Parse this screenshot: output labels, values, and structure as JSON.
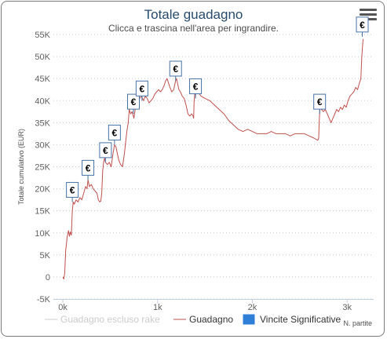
{
  "title": "Totale guadagno",
  "subtitle": "Clicca e trascina nell'area per ingrandire.",
  "menu_icon": "hamburger-menu-icon",
  "chart_data": {
    "type": "line",
    "title": "Totale guadagno",
    "subtitle": "Clicca e trascina nell'area per ingrandire.",
    "ylabel": "Totale cumulativo (EUR)",
    "xlabel": "N. partite",
    "xlim": [
      -100,
      3280
    ],
    "ylim": [
      -5000,
      55000
    ],
    "x_ticks": [
      "0k",
      "1k",
      "2k",
      "3k"
    ],
    "x_tick_values": [
      0,
      1000,
      2000,
      3000
    ],
    "y_ticks": [
      "-5K",
      "0",
      "5K",
      "10K",
      "15K",
      "20K",
      "25K",
      "30K",
      "35K",
      "40K",
      "45K",
      "50K",
      "55K"
    ],
    "y_tick_values": [
      -5000,
      0,
      5000,
      10000,
      15000,
      20000,
      25000,
      30000,
      35000,
      40000,
      45000,
      50000,
      55000
    ],
    "grid": "horizontal-dotted",
    "legend_position": "bottom",
    "series": [
      {
        "name": "Guadagno escluso rake",
        "color": "#cccccc",
        "visible": false,
        "points": []
      },
      {
        "name": "Guadagno",
        "color": "#c0504d",
        "points": [
          [
            0,
            0
          ],
          [
            10,
            -500
          ],
          [
            20,
            1000
          ],
          [
            30,
            6000
          ],
          [
            45,
            9000
          ],
          [
            60,
            10500
          ],
          [
            70,
            9200
          ],
          [
            80,
            10200
          ],
          [
            90,
            9500
          ],
          [
            100,
            15000
          ],
          [
            110,
            17000
          ],
          [
            120,
            16500
          ],
          [
            140,
            17500
          ],
          [
            160,
            17000
          ],
          [
            180,
            18000
          ],
          [
            200,
            17500
          ],
          [
            220,
            19000
          ],
          [
            240,
            20500
          ],
          [
            255,
            20000
          ],
          [
            265,
            22000
          ],
          [
            280,
            20500
          ],
          [
            300,
            21000
          ],
          [
            320,
            20000
          ],
          [
            340,
            19500
          ],
          [
            360,
            19000
          ],
          [
            375,
            17500
          ],
          [
            390,
            17000
          ],
          [
            400,
            17200
          ],
          [
            410,
            19000
          ],
          [
            420,
            24000
          ],
          [
            430,
            26000
          ],
          [
            440,
            27000
          ],
          [
            450,
            26000
          ],
          [
            470,
            25500
          ],
          [
            490,
            26000
          ],
          [
            510,
            25000
          ],
          [
            520,
            26500
          ],
          [
            530,
            28000
          ],
          [
            545,
            30000
          ],
          [
            560,
            29500
          ],
          [
            575,
            28000
          ],
          [
            590,
            26500
          ],
          [
            610,
            25500
          ],
          [
            630,
            25000
          ],
          [
            650,
            28000
          ],
          [
            665,
            31000
          ],
          [
            675,
            33000
          ],
          [
            690,
            35000
          ],
          [
            700,
            38000
          ],
          [
            715,
            37000
          ],
          [
            730,
            37500
          ],
          [
            750,
            36000
          ],
          [
            770,
            39000
          ],
          [
            790,
            40000
          ],
          [
            810,
            40500
          ],
          [
            830,
            41000
          ],
          [
            850,
            40000
          ],
          [
            870,
            41000
          ],
          [
            890,
            40500
          ],
          [
            910,
            39500
          ],
          [
            930,
            40000
          ],
          [
            950,
            40500
          ],
          [
            970,
            41500
          ],
          [
            990,
            42000
          ],
          [
            1010,
            42500
          ],
          [
            1030,
            42000
          ],
          [
            1050,
            42500
          ],
          [
            1070,
            43500
          ],
          [
            1085,
            44500
          ],
          [
            1100,
            45000
          ],
          [
            1115,
            44000
          ],
          [
            1130,
            43000
          ],
          [
            1150,
            42000
          ],
          [
            1170,
            42500
          ],
          [
            1180,
            43500
          ],
          [
            1190,
            44500
          ],
          [
            1200,
            45000
          ],
          [
            1210,
            44000
          ],
          [
            1225,
            42500
          ],
          [
            1240,
            42000
          ],
          [
            1260,
            41000
          ],
          [
            1280,
            40500
          ],
          [
            1300,
            39000
          ],
          [
            1320,
            37000
          ],
          [
            1340,
            36500
          ],
          [
            1360,
            37000
          ],
          [
            1375,
            36500
          ],
          [
            1380,
            36000
          ],
          [
            1385,
            40000
          ],
          [
            1395,
            42000
          ],
          [
            1405,
            41500
          ],
          [
            1420,
            42000
          ],
          [
            1440,
            41500
          ],
          [
            1460,
            41000
          ],
          [
            1500,
            40500
          ],
          [
            1550,
            40000
          ],
          [
            1600,
            39000
          ],
          [
            1650,
            38000
          ],
          [
            1700,
            37000
          ],
          [
            1750,
            35500
          ],
          [
            1800,
            34500
          ],
          [
            1850,
            33500
          ],
          [
            1900,
            33000
          ],
          [
            1950,
            33500
          ],
          [
            2000,
            33000
          ],
          [
            2050,
            32500
          ],
          [
            2100,
            32500
          ],
          [
            2150,
            32500
          ],
          [
            2200,
            33000
          ],
          [
            2250,
            32500
          ],
          [
            2300,
            32500
          ],
          [
            2350,
            32500
          ],
          [
            2400,
            32000
          ],
          [
            2450,
            32500
          ],
          [
            2500,
            32500
          ],
          [
            2550,
            32500
          ],
          [
            2600,
            32000
          ],
          [
            2650,
            31500
          ],
          [
            2690,
            31000
          ],
          [
            2700,
            31500
          ],
          [
            2705,
            35000
          ],
          [
            2715,
            39000
          ],
          [
            2730,
            38000
          ],
          [
            2750,
            37500
          ],
          [
            2770,
            38000
          ],
          [
            2790,
            37000
          ],
          [
            2810,
            36000
          ],
          [
            2830,
            35000
          ],
          [
            2850,
            36000
          ],
          [
            2870,
            37000
          ],
          [
            2890,
            38000
          ],
          [
            2910,
            37500
          ],
          [
            2930,
            38500
          ],
          [
            2950,
            38000
          ],
          [
            2970,
            39000
          ],
          [
            2990,
            38500
          ],
          [
            3010,
            40000
          ],
          [
            3030,
            41000
          ],
          [
            3050,
            41500
          ],
          [
            3070,
            42000
          ],
          [
            3090,
            43000
          ],
          [
            3110,
            42500
          ],
          [
            3130,
            44000
          ],
          [
            3145,
            45000
          ],
          [
            3155,
            50000
          ],
          [
            3165,
            53000
          ],
          [
            3170,
            54000
          ]
        ]
      },
      {
        "name": "Vincite Significative",
        "color": "#2f7ed8",
        "marker_label": "€",
        "points": [
          [
            100,
            17000
          ],
          [
            265,
            22000
          ],
          [
            450,
            26000
          ],
          [
            545,
            30000
          ],
          [
            745,
            37000
          ],
          [
            835,
            40000
          ],
          [
            1190,
            44500
          ],
          [
            1400,
            40500
          ],
          [
            2710,
            37000
          ],
          [
            3160,
            54500
          ]
        ]
      }
    ]
  }
}
